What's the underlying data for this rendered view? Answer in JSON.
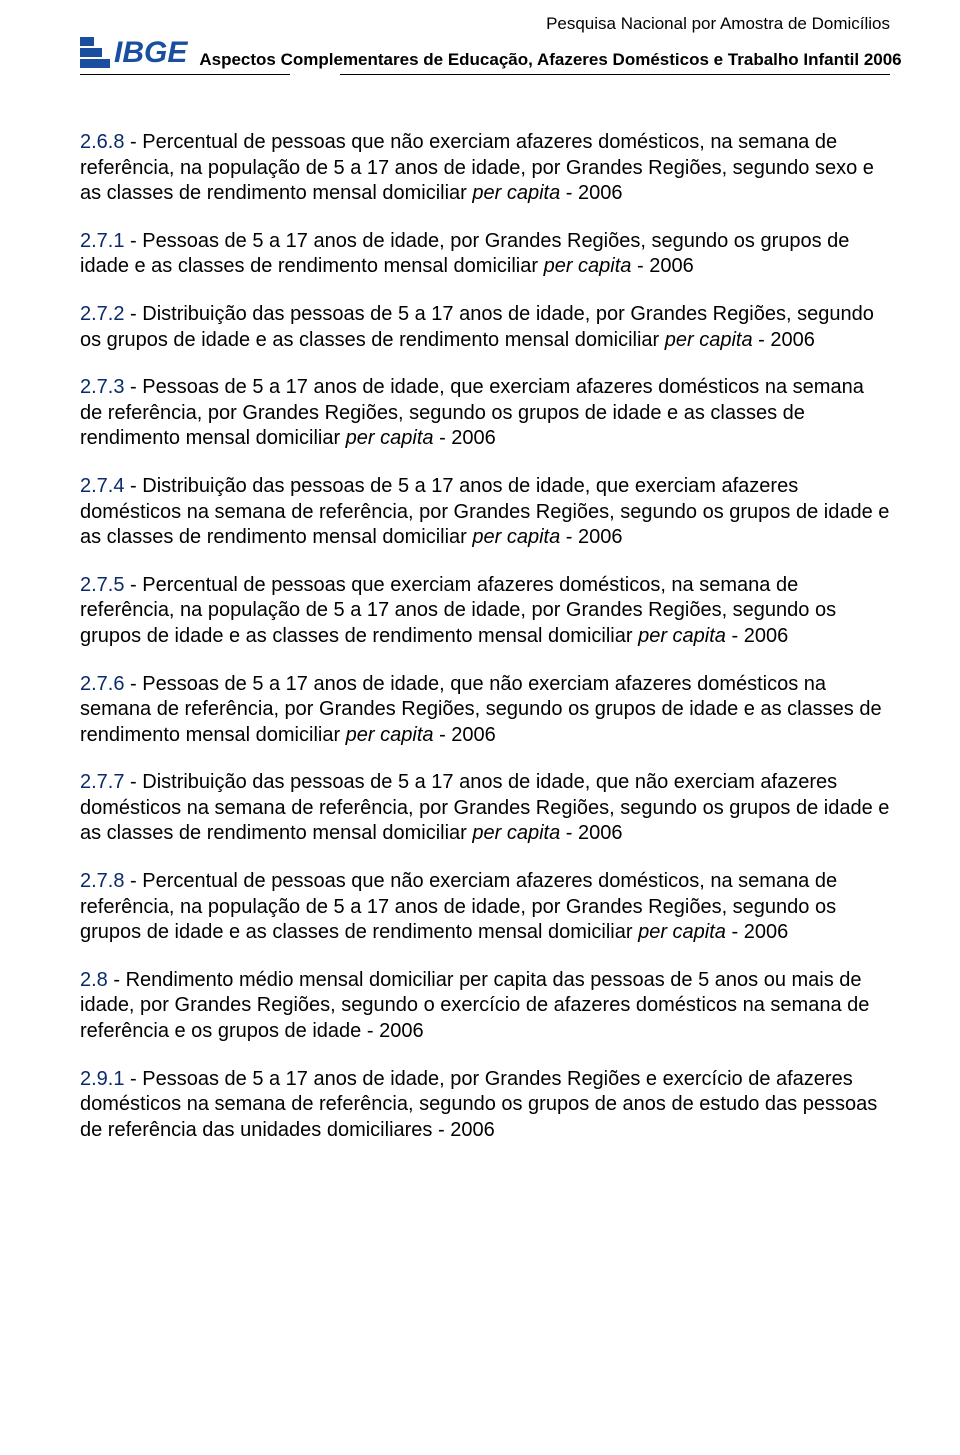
{
  "header": {
    "line1": "Pesquisa Nacional por Amostra de Domicílios",
    "line2": "Aspectos Complementares de Educação, Afazeres Domésticos e Trabalho Infantil 2006",
    "logo_text": "IBGE",
    "colors": {
      "logo": "#1a4fa0",
      "num": "#0a2a6b",
      "text": "#000000",
      "bg": "#ffffff"
    }
  },
  "entries": [
    {
      "num": "2.6.8",
      "pre": " - Percentual de pessoas que não exerciam afazeres domésticos, na semana de referência, na população de 5 a 17 anos de idade, por Grandes Regiões, segundo sexo e as classes de rendimento mensal domiciliar ",
      "ital": "per capita",
      "post": " - 2006"
    },
    {
      "num": "2.7.1",
      "pre": " - Pessoas de 5 a 17 anos de idade, por Grandes Regiões, segundo os grupos de idade e as classes de rendimento mensal domiciliar ",
      "ital": "per capita",
      "post": " - 2006"
    },
    {
      "num": "2.7.2",
      "pre": " - Distribuição das pessoas de 5 a 17 anos de idade, por Grandes Regiões, segundo os grupos de idade e as classes de rendimento mensal domiciliar ",
      "ital": "per capita",
      "post": " - 2006"
    },
    {
      "num": "2.7.3",
      "pre": " - Pessoas de 5 a 17 anos de idade, que exerciam afazeres domésticos na semana de referência, por Grandes Regiões, segundo os grupos de idade e as classes de rendimento mensal domiciliar ",
      "ital": "per capita",
      "post": " - 2006"
    },
    {
      "num": "2.7.4",
      "pre": " - Distribuição das pessoas de 5 a 17 anos de idade, que exerciam afazeres domésticos na semana de referência, por Grandes Regiões, segundo os grupos de idade e as classes de rendimento mensal domiciliar ",
      "ital": "per capita",
      "post": " - 2006"
    },
    {
      "num": "2.7.5",
      "pre": " - Percentual de pessoas que exerciam afazeres domésticos, na semana de referência, na população de 5 a 17 anos de idade, por Grandes Regiões, segundo os grupos de idade e as classes de rendimento mensal domiciliar ",
      "ital": "per capita",
      "post": " - 2006"
    },
    {
      "num": "2.7.6",
      "pre": " - Pessoas de 5 a 17 anos de idade, que não exerciam afazeres domésticos na semana de referência, por Grandes Regiões, segundo os grupos de idade e as classes de rendimento mensal domiciliar ",
      "ital": "per capita",
      "post": " - 2006"
    },
    {
      "num": "2.7.7",
      "pre": " - Distribuição das pessoas de 5 a 17 anos de idade, que não exerciam afazeres domésticos na semana de referência, por Grandes Regiões, segundo os grupos de idade e as classes de rendimento mensal domiciliar ",
      "ital": "per capita",
      "post": " - 2006"
    },
    {
      "num": "2.7.8",
      "pre": " - Percentual de pessoas que não exerciam afazeres domésticos, na semana de referência, na população de 5 a 17 anos de idade, por Grandes Regiões, segundo os grupos de idade e as classes de rendimento mensal domiciliar ",
      "ital": "per capita",
      "post": " - 2006"
    },
    {
      "num": "2.8",
      "pre": " - Rendimento médio mensal domiciliar per capita das pessoas de 5 anos ou mais de idade, por Grandes Regiões, segundo o exercício de afazeres domésticos na semana de referência e os grupos de idade - 2006",
      "ital": "",
      "post": ""
    },
    {
      "num": "2.9.1",
      "pre": " - Pessoas de 5 a 17 anos de idade, por Grandes Regiões e exercício de afazeres domésticos na semana de referência, segundo os grupos de anos de estudo das pessoas de referência das unidades domiciliares - 2006",
      "ital": "",
      "post": ""
    }
  ]
}
